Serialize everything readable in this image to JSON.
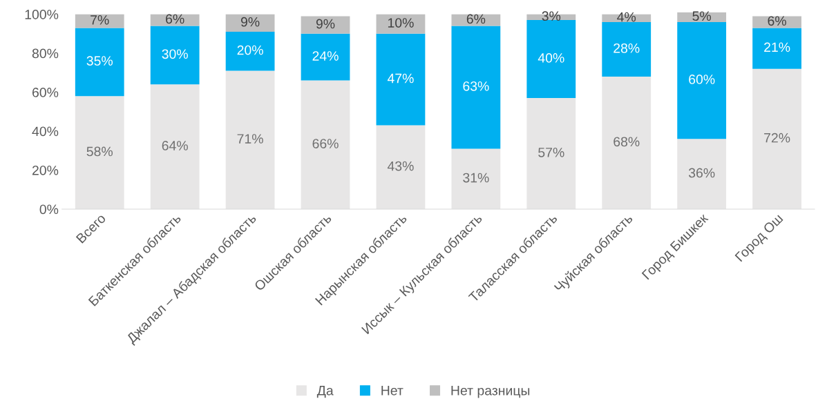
{
  "chart_data": {
    "type": "bar",
    "stacked": true,
    "categories": [
      "Всего",
      "Баткенская область",
      "Джалал – Абадская область",
      "Ошская область",
      "Нарынская область",
      "Иссык – Кульская область",
      "Таласская область",
      "Чуйская область",
      "Город Бишкек",
      "Город Ош"
    ],
    "series": [
      {
        "name": "Да",
        "color": "#e7e6e6",
        "values": [
          58,
          64,
          71,
          66,
          43,
          31,
          57,
          68,
          36,
          72
        ],
        "value_labels": [
          "58%",
          "64%",
          "71%",
          "66%",
          "43%",
          "31%",
          "57%",
          "68%",
          "36%",
          "72%"
        ]
      },
      {
        "name": "Нет",
        "color": "#00b0f0",
        "values": [
          35,
          30,
          20,
          24,
          47,
          63,
          40,
          28,
          60,
          21
        ],
        "value_labels": [
          "35%",
          "30%",
          "20%",
          "24%",
          "47%",
          "63%",
          "40%",
          "28%",
          "60%",
          "21%"
        ]
      },
      {
        "name": "Нет разницы",
        "color": "#bfbfbf",
        "values": [
          7,
          6,
          9,
          9,
          10,
          6,
          3,
          4,
          5,
          6
        ],
        "value_labels": [
          "7%",
          "6%",
          "9%",
          "9%",
          "10%",
          "6%",
          "3%",
          "4%",
          "5%",
          "6%"
        ]
      }
    ],
    "ylim": [
      0,
      101
    ],
    "yticks": [
      {
        "value": 0,
        "label": "0%"
      },
      {
        "value": 20,
        "label": "20%"
      },
      {
        "value": 40,
        "label": "40%"
      },
      {
        "value": 60,
        "label": "60%"
      },
      {
        "value": 80,
        "label": "80%"
      },
      {
        "value": 100,
        "label": "100%"
      }
    ],
    "grid": false,
    "legend": "bottom"
  }
}
